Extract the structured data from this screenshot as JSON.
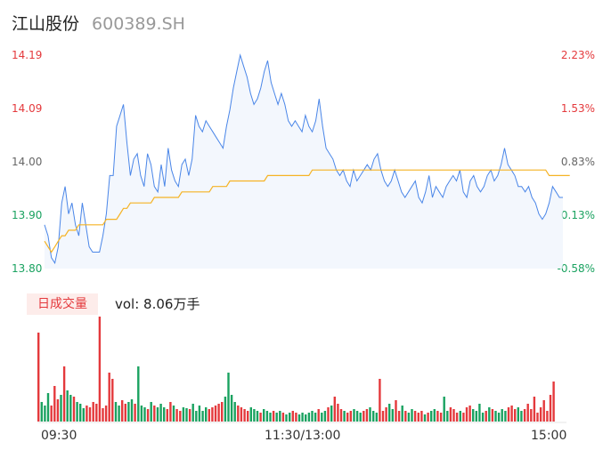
{
  "stock": {
    "name": "江山股份",
    "code": "600389.SH"
  },
  "price_labels": [
    "14.19",
    "14.09",
    "14.00",
    "13.90",
    "13.80"
  ],
  "pct_labels": [
    "2.23%",
    "1.53%",
    "0.83%",
    "0.13%",
    "-0.58%"
  ],
  "volume": {
    "badge": "日成交量",
    "text": "vol: 8.06万手"
  },
  "time_labels": [
    "09:30",
    "11:30/13:00",
    "15:00"
  ],
  "colors": {
    "up": "#e4393c",
    "down": "#1aa260",
    "price_line": "#4a86e8",
    "avg_line": "#f5b324",
    "neutral": "#666666"
  },
  "chart_data": [
    {
      "type": "line",
      "title": "",
      "ylim": [
        13.8,
        14.19
      ],
      "x_ticks": [
        "09:30",
        "11:30/13:00",
        "15:00"
      ],
      "series": [
        {
          "values": [
            13.88,
            13.86,
            13.82,
            13.81,
            13.84,
            13.92,
            13.95,
            13.9,
            13.92,
            13.88,
            13.86,
            13.92,
            13.88,
            13.84,
            13.83,
            13.83,
            13.83,
            13.86,
            13.9,
            13.97,
            13.97,
            14.06,
            14.08,
            14.1,
            14.03,
            13.97,
            14.0,
            14.01,
            13.97,
            13.95,
            14.01,
            13.99,
            13.95,
            13.94,
            13.99,
            13.95,
            14.02,
            13.98,
            13.96,
            13.95,
            13.99,
            14.0,
            13.97,
            14.0,
            14.08,
            14.06,
            14.05,
            14.07,
            14.06,
            14.05,
            14.04,
            14.03,
            14.02,
            14.06,
            14.09,
            14.13,
            14.16,
            14.19,
            14.17,
            14.15,
            14.12,
            14.1,
            14.11,
            14.13,
            14.16,
            14.18,
            14.14,
            14.12,
            14.1,
            14.12,
            14.1,
            14.07,
            14.06,
            14.07,
            14.06,
            14.05,
            14.08,
            14.06,
            14.05,
            14.07,
            14.11,
            14.06,
            14.02,
            14.01,
            14.0,
            13.98,
            13.97,
            13.98,
            13.96,
            13.95,
            13.98,
            13.96,
            13.97,
            13.98,
            13.99,
            13.98,
            14.0,
            14.01,
            13.98,
            13.96,
            13.95,
            13.96,
            13.98,
            13.96,
            13.94,
            13.93,
            13.94,
            13.95,
            13.96,
            13.93,
            13.92,
            13.94,
            13.97,
            13.93,
            13.95,
            13.94,
            13.93,
            13.95,
            13.96,
            13.97,
            13.96,
            13.98,
            13.94,
            13.93,
            13.96,
            13.97,
            13.95,
            13.94,
            13.95,
            13.97,
            13.98,
            13.96,
            13.97,
            13.99,
            14.02,
            13.99,
            13.98,
            13.97,
            13.95,
            13.95,
            13.94,
            13.95,
            13.93,
            13.92,
            13.9,
            13.89,
            13.9,
            13.92,
            13.95,
            13.94,
            13.93,
            13.93
          ]
        },
        {
          "values": [
            13.85,
            13.84,
            13.83,
            13.84,
            13.85,
            13.86,
            13.86,
            13.87,
            13.87,
            13.87,
            13.88,
            13.88,
            13.88,
            13.88,
            13.88,
            13.88,
            13.88,
            13.88,
            13.89,
            13.89,
            13.89,
            13.89,
            13.9,
            13.91,
            13.91,
            13.92,
            13.92,
            13.92,
            13.92,
            13.92,
            13.92,
            13.92,
            13.93,
            13.93,
            13.93,
            13.93,
            13.93,
            13.93,
            13.93,
            13.93,
            13.94,
            13.94,
            13.94,
            13.94,
            13.94,
            13.94,
            13.94,
            13.94,
            13.94,
            13.95,
            13.95,
            13.95,
            13.95,
            13.95,
            13.96,
            13.96,
            13.96,
            13.96,
            13.96,
            13.96,
            13.96,
            13.96,
            13.96,
            13.96,
            13.96,
            13.97,
            13.97,
            13.97,
            13.97,
            13.97,
            13.97,
            13.97,
            13.97,
            13.97,
            13.97,
            13.97,
            13.97,
            13.97,
            13.98,
            13.98,
            13.98,
            13.98,
            13.98,
            13.98,
            13.98,
            13.98,
            13.98,
            13.98,
            13.98,
            13.98,
            13.98,
            13.98,
            13.98,
            13.98,
            13.98,
            13.98,
            13.98,
            13.98,
            13.98,
            13.98,
            13.98,
            13.98,
            13.98,
            13.98,
            13.98,
            13.98,
            13.98,
            13.98,
            13.98,
            13.98,
            13.98,
            13.98,
            13.98,
            13.98,
            13.98,
            13.98,
            13.98,
            13.98,
            13.98,
            13.98,
            13.98,
            13.98,
            13.98,
            13.98,
            13.98,
            13.98,
            13.98,
            13.98,
            13.98,
            13.98,
            13.98,
            13.98,
            13.98,
            13.98,
            13.98,
            13.98,
            13.98,
            13.98,
            13.98,
            13.98,
            13.98,
            13.98,
            13.98,
            13.98,
            13.98,
            13.98,
            13.98,
            13.97,
            13.97,
            13.97,
            13.97,
            13.97,
            13.97,
            13.97
          ]
        }
      ]
    },
    {
      "type": "bar",
      "title": "",
      "series": [
        {
          "values": [
            1.0,
            0.22,
            0.18,
            0.32,
            0.18,
            0.4,
            0.25,
            0.3,
            0.62,
            0.35,
            0.3,
            0.28,
            0.22,
            0.2,
            0.15,
            0.18,
            0.16,
            0.22,
            0.2,
            1.18,
            0.15,
            0.18,
            0.55,
            0.48,
            0.22,
            0.18,
            0.24,
            0.2,
            0.22,
            0.25,
            0.2,
            0.62,
            0.18,
            0.16,
            0.14,
            0.22,
            0.18,
            0.16,
            0.2,
            0.16,
            0.14,
            0.22,
            0.18,
            0.14,
            0.12,
            0.16,
            0.15,
            0.14,
            0.2,
            0.12,
            0.18,
            0.12,
            0.16,
            0.14,
            0.16,
            0.18,
            0.2,
            0.22,
            0.28,
            0.55,
            0.3,
            0.22,
            0.18,
            0.16,
            0.14,
            0.12,
            0.16,
            0.14,
            0.12,
            0.1,
            0.14,
            0.12,
            0.1,
            0.12,
            0.1,
            0.12,
            0.1,
            0.08,
            0.1,
            0.12,
            0.1,
            0.08,
            0.1,
            0.08,
            0.1,
            0.12,
            0.1,
            0.14,
            0.1,
            0.12,
            0.16,
            0.18,
            0.28,
            0.2,
            0.14,
            0.12,
            0.1,
            0.12,
            0.14,
            0.12,
            0.1,
            0.12,
            0.14,
            0.16,
            0.12,
            0.1,
            0.48,
            0.12,
            0.16,
            0.2,
            0.14,
            0.24,
            0.12,
            0.18,
            0.12,
            0.1,
            0.14,
            0.12,
            0.1,
            0.12,
            0.08,
            0.1,
            0.12,
            0.14,
            0.12,
            0.1,
            0.28,
            0.12,
            0.16,
            0.14,
            0.1,
            0.12,
            0.1,
            0.16,
            0.18,
            0.14,
            0.12,
            0.2,
            0.1,
            0.12,
            0.16,
            0.14,
            0.12,
            0.1,
            0.14,
            0.12,
            0.16,
            0.18,
            0.14,
            0.16,
            0.12,
            0.14,
            0.2,
            0.14,
            0.28,
            0.1,
            0.16,
            0.24,
            0.12,
            0.3,
            0.45
          ]
        }
      ]
    }
  ]
}
